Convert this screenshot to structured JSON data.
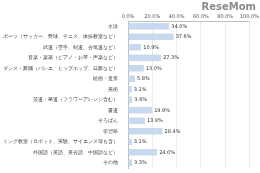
{
  "chart_data": {
    "type": "bar",
    "orientation": "horizontal",
    "annotation": "ReseMom",
    "categories": [
      "水泳",
      "スポーツ（サッカー、野球、テニス、体操教室など）",
      "武道（空手、剣道、合気道など）",
      "音楽・楽器（ピアノ・お琴・声楽など）",
      "ダンス・舞踊（バレエ、ヒップホップ、日舞など）",
      "絵画・造形",
      "美術",
      "茶道・華道（フラワーアレンジ含む）",
      "書道",
      "そろばん",
      "学習塾",
      "プログラミング教室（ロボット、実験、サイエンス等も含）",
      "外国語（英語、英会話、中国語など）",
      "その他"
    ],
    "values": [
      34.0,
      37.6,
      10.9,
      27.3,
      13.0,
      5.8,
      3.1,
      3.6,
      19.9,
      13.9,
      28.4,
      3.1,
      24.0,
      3.3
    ],
    "value_labels": [
      "34.0%",
      "37.6%",
      "10.9%",
      "27.3%",
      "13.0%",
      "5.8%",
      "3.1%",
      "3.6%",
      "19.9%",
      "13.9%",
      "28.4%",
      "3.1%",
      "24.0%",
      "3.3%"
    ],
    "data_labels": true,
    "color": "#c6d9f0",
    "xlim": [
      0,
      100
    ],
    "xticks": [
      {
        "value": 0,
        "label": "0.0%"
      },
      {
        "value": 20,
        "label": "20.0%"
      },
      {
        "value": 40,
        "label": "40.0%"
      },
      {
        "value": 60,
        "label": "60.0%"
      },
      {
        "value": 80,
        "label": "80.0%"
      },
      {
        "value": 100,
        "label": "100.0%"
      }
    ],
    "grid": true
  }
}
